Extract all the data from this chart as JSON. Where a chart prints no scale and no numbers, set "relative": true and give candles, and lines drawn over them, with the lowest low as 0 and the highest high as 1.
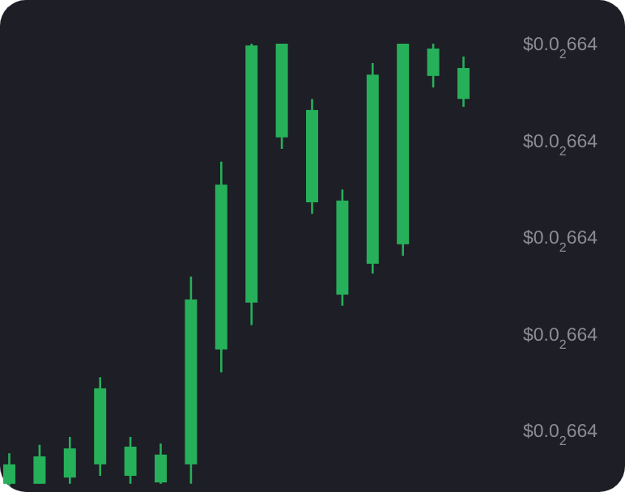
{
  "chart_data": {
    "type": "candlestick",
    "relative": true,
    "categories": [
      null,
      null,
      null,
      null,
      null,
      null,
      null,
      null,
      null,
      null,
      null,
      null,
      null,
      null,
      null,
      null
    ],
    "ohlc": [
      [
        0.004,
        0.073,
        0,
        0.048
      ],
      [
        0.004,
        0.092,
        0.004,
        0.066
      ],
      [
        0.018,
        0.11,
        0.004,
        0.084
      ],
      [
        0.048,
        0.245,
        0.022,
        0.22
      ],
      [
        0.022,
        0.11,
        0.004,
        0.088
      ],
      [
        0.007,
        0.095,
        0.004,
        0.07
      ],
      [
        0.048,
        0.473,
        0.004,
        0.421
      ],
      [
        0.308,
        0.733,
        0.256,
        0.681
      ],
      [
        0.414,
        1,
        0.363,
        0.996
      ],
      [
        0.788,
        1,
        0.762,
        1
      ],
      [
        0.641,
        0.875,
        0.615,
        0.85
      ],
      [
        0.432,
        0.67,
        0.407,
        0.645
      ],
      [
        0.502,
        0.956,
        0.48,
        0.93
      ],
      [
        0.546,
        1,
        0.52,
        1
      ],
      [
        0.927,
        1,
        0.901,
        0.989
      ],
      [
        0.875,
        0.971,
        0.857,
        0.945
      ]
    ],
    "color": "#27b05a",
    "annotations": [
      "$0.0$_{2}$664",
      "$0.0$_{2}$664",
      "$0.0$_{2}$664",
      "$0.0$_{2}$664",
      "$0.0$_{2}$664"
    ]
  }
}
